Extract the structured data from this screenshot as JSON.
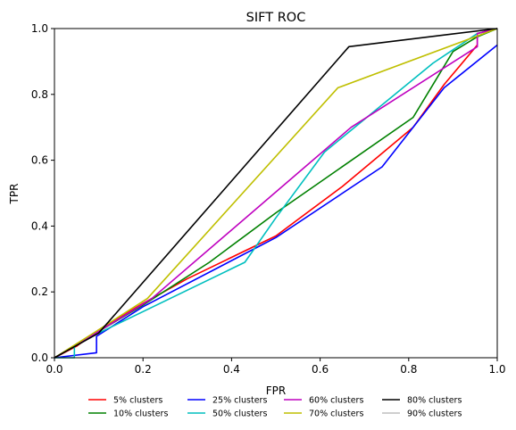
{
  "chart_data": {
    "type": "line",
    "title": "SIFT ROC",
    "xlabel": "FPR",
    "ylabel": "TPR",
    "xlim": [
      0,
      1
    ],
    "ylim": [
      0,
      1
    ],
    "xticks": [
      "0.0",
      "0.2",
      "0.4",
      "0.6",
      "0.8",
      "1.0"
    ],
    "yticks": [
      "0.0",
      "0.2",
      "0.4",
      "0.6",
      "0.8",
      "1.0"
    ],
    "grid": false,
    "legend_placement": "bottom-center",
    "series": [
      {
        "name": "5% clusters",
        "color": "#ff0000",
        "x": [
          0,
          0.05,
          0.1,
          0.2,
          0.3,
          0.5,
          0.65,
          0.81,
          0.88,
          0.955,
          0.955,
          1.0
        ],
        "y": [
          0,
          0.035,
          0.085,
          0.165,
          0.24,
          0.37,
          0.52,
          0.7,
          0.83,
          0.95,
          0.985,
          1.0
        ]
      },
      {
        "name": "10% clusters",
        "color": "#008000",
        "x": [
          0,
          0.1,
          0.2,
          0.35,
          0.5,
          0.81,
          0.9,
          0.955,
          1.0
        ],
        "y": [
          0,
          0.08,
          0.16,
          0.29,
          0.44,
          0.73,
          0.93,
          0.975,
          1.0
        ]
      },
      {
        "name": "25% clusters",
        "color": "#0000ff",
        "x": [
          0,
          0.095,
          0.095,
          0.2,
          0.5,
          0.74,
          0.88,
          1.0
        ],
        "y": [
          0,
          0.015,
          0.065,
          0.155,
          0.365,
          0.58,
          0.82,
          0.95
        ]
      },
      {
        "name": "50% clusters",
        "color": "#00bfbf",
        "x": [
          0,
          0.045,
          0.045,
          0.1,
          0.43,
          0.5,
          0.61,
          0.855,
          0.955,
          1.0
        ],
        "y": [
          0,
          0,
          0.035,
          0.075,
          0.29,
          0.425,
          0.625,
          0.895,
          0.985,
          1.0
        ]
      },
      {
        "name": "60% clusters",
        "color": "#bf00bf",
        "x": [
          0,
          0.1,
          0.22,
          0.67,
          0.955,
          0.955,
          1.0
        ],
        "y": [
          0,
          0.08,
          0.18,
          0.7,
          0.945,
          0.985,
          1.0
        ]
      },
      {
        "name": "70% clusters",
        "color": "#bfbf00",
        "x": [
          0,
          0.1,
          0.21,
          0.64,
          1.0
        ],
        "y": [
          0,
          0.085,
          0.18,
          0.82,
          1.0
        ]
      },
      {
        "name": "80% clusters",
        "color": "#000000",
        "x": [
          0,
          0.1,
          0.665,
          1.0
        ],
        "y": [
          0,
          0.075,
          0.945,
          1.0
        ]
      },
      {
        "name": "90% clusters",
        "color": "#bfbfbf",
        "x": [],
        "y": []
      }
    ]
  }
}
